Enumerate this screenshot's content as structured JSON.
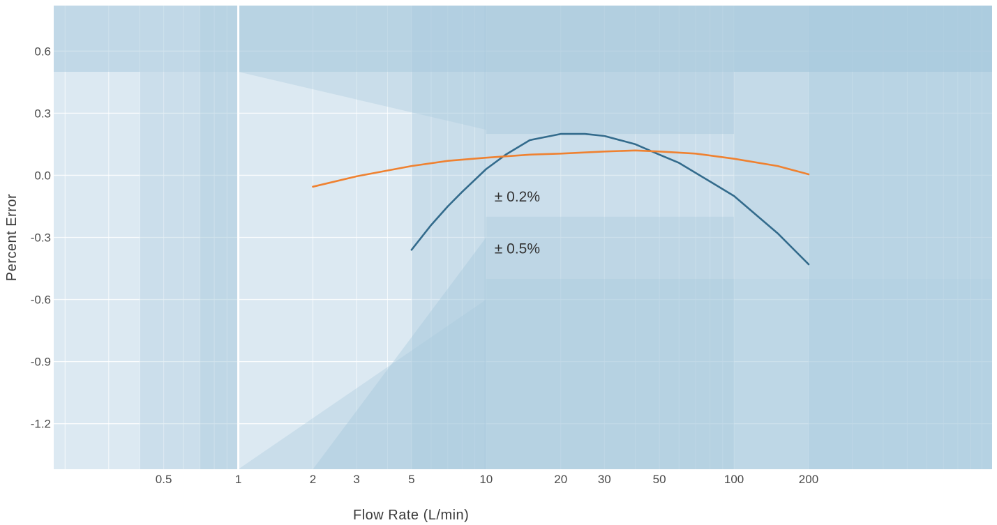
{
  "chart_data": {
    "type": "line",
    "title": "",
    "xlabel": "Flow Rate (L/min)",
    "ylabel": "Percent Error",
    "x_scale": "log",
    "xlim": [
      0.18,
      1100
    ],
    "ylim": [
      -1.42,
      0.82
    ],
    "x_ticks": [
      {
        "value": 0.5,
        "label": "0.5"
      },
      {
        "value": 1,
        "label": "1"
      },
      {
        "value": 2,
        "label": "2"
      },
      {
        "value": 3,
        "label": "3"
      },
      {
        "value": 5,
        "label": "5"
      },
      {
        "value": 10,
        "label": "10"
      },
      {
        "value": 20,
        "label": "20"
      },
      {
        "value": 30,
        "label": "30"
      },
      {
        "value": 50,
        "label": "50"
      },
      {
        "value": 100,
        "label": "100"
      },
      {
        "value": 200,
        "label": "200"
      }
    ],
    "y_ticks": [
      {
        "value": 0.6,
        "label": "0.6"
      },
      {
        "value": 0.3,
        "label": "0.3"
      },
      {
        "value": 0.0,
        "label": "0.0"
      },
      {
        "value": -0.3,
        "label": "-0.3"
      },
      {
        "value": -0.6,
        "label": "-0.6"
      },
      {
        "value": -0.9,
        "label": "-0.9"
      },
      {
        "value": -1.2,
        "label": "-1.2"
      }
    ],
    "grid": true,
    "colors": {
      "background": "#dce9f2",
      "shade": "#a6c8dc",
      "grid": "#ffffff",
      "blue_series": "#336b8c",
      "orange_series": "#ef8130"
    },
    "accuracy_bands": [
      {
        "label": "± 0.2%",
        "value": 0.2,
        "x_range": [
          10,
          100
        ]
      },
      {
        "label": "± 0.5%",
        "value": 0.5,
        "x_range": [
          10,
          100
        ]
      }
    ],
    "series": [
      {
        "color": "#336b8c",
        "x": [
          5,
          6,
          7,
          8,
          10,
          12,
          15,
          20,
          25,
          30,
          40,
          50,
          60,
          80,
          100,
          150,
          200
        ],
        "y": [
          -0.36,
          -0.24,
          -0.15,
          -0.08,
          0.03,
          0.1,
          0.17,
          0.2,
          0.2,
          0.19,
          0.15,
          0.1,
          0.06,
          -0.03,
          -0.1,
          -0.28,
          -0.43
        ]
      },
      {
        "color": "#ef8130",
        "x": [
          2,
          3,
          5,
          7,
          10,
          15,
          20,
          30,
          40,
          50,
          70,
          100,
          150,
          200
        ],
        "y": [
          -0.055,
          -0.005,
          0.045,
          0.07,
          0.085,
          0.1,
          0.105,
          0.115,
          0.12,
          0.115,
          0.105,
          0.08,
          0.045,
          0.005
        ]
      }
    ]
  }
}
